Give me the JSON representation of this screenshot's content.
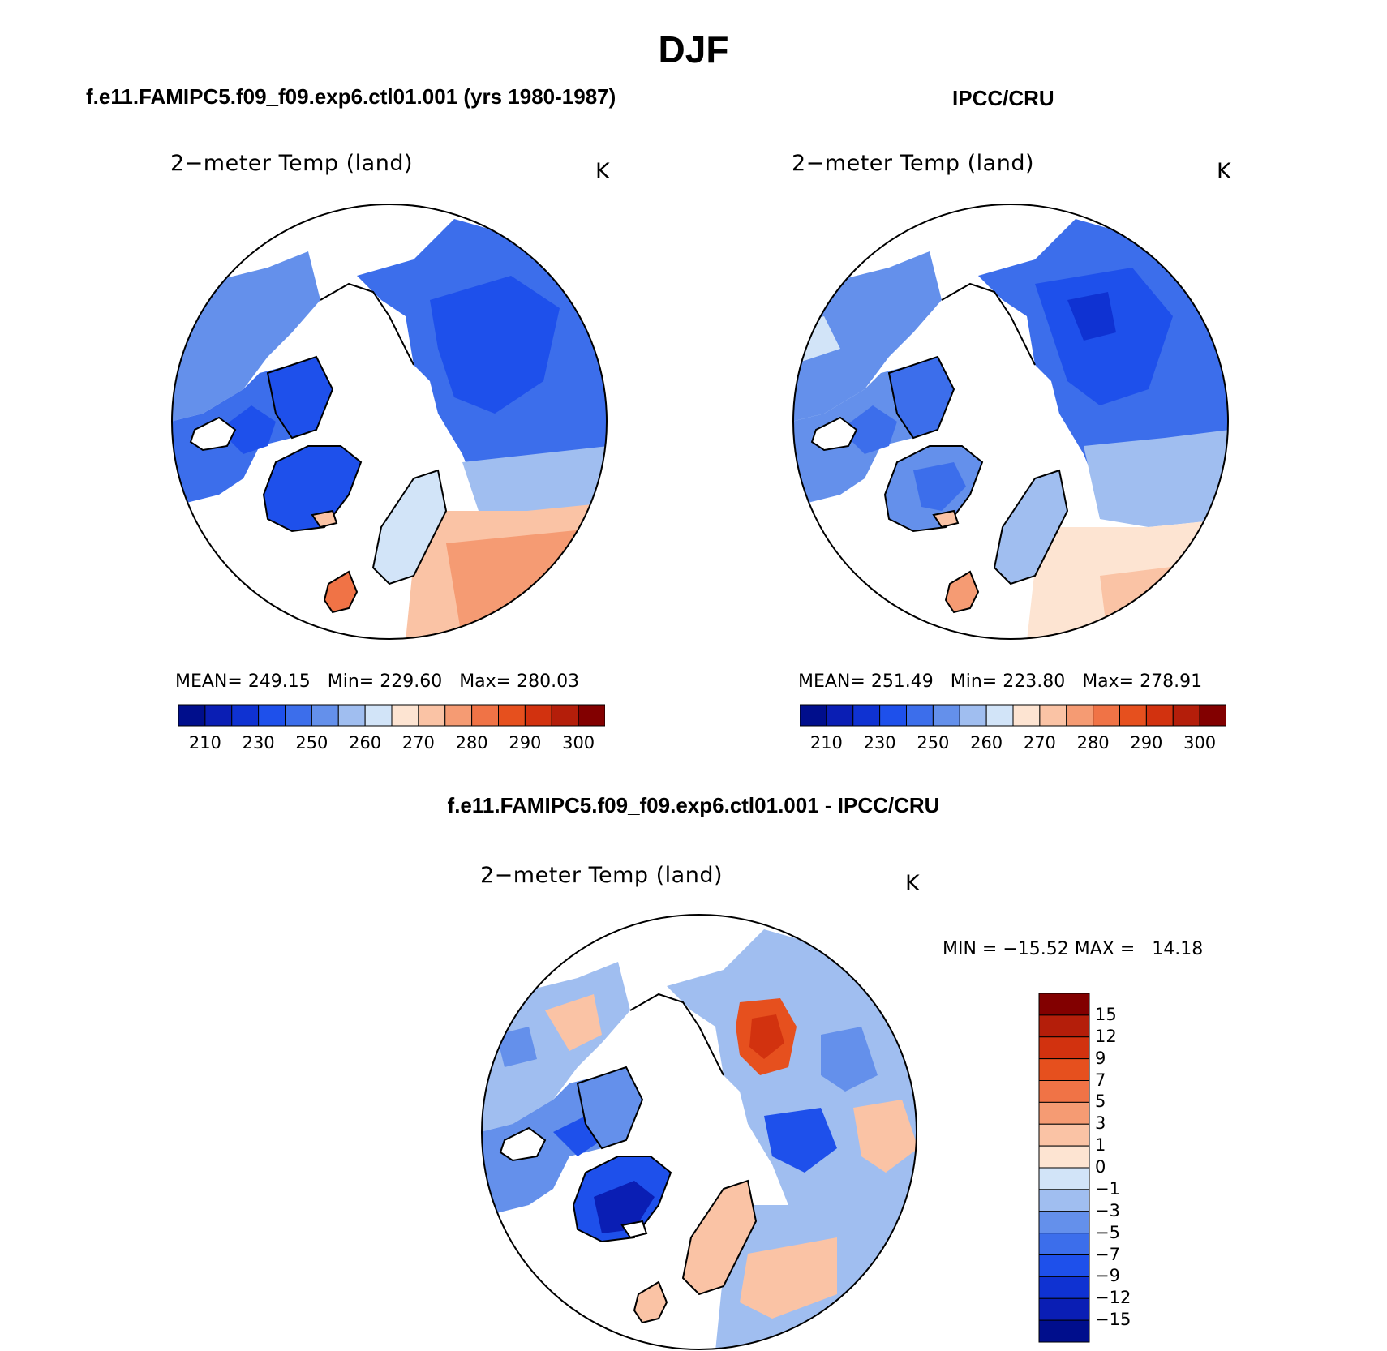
{
  "figure": {
    "season": "DJF"
  },
  "panels": {
    "model": {
      "heading": "f.e11.FAMIPC5.f09_f09.exp6.ctl01.001 (yrs 1980-1987)",
      "variable": "2−meter Temp (land)",
      "units": "K",
      "stats_text": "MEAN= 249.15   Min= 229.60   Max= 280.03"
    },
    "obs": {
      "heading": "IPCC/CRU",
      "variable": "2−meter Temp (land)",
      "units": "K",
      "stats_text": "MEAN= 251.49   Min= 223.80   Max= 278.91"
    },
    "diff": {
      "heading": "f.e11.FAMIPC5.f09_f09.exp6.ctl01.001 - IPCC/CRU",
      "variable": "2−meter Temp (land)",
      "units": "K",
      "stats_text": "MIN = −15.52 MAX =   14.18"
    }
  },
  "colorbars": {
    "temp_labels": [
      "210",
      "230",
      "250",
      "260",
      "270",
      "280",
      "290",
      "300"
    ],
    "temp_colors": [
      "#000e8c",
      "#0a1eb4",
      "#0f32d2",
      "#1e50eb",
      "#3c6eeb",
      "#6490eb",
      "#a0bef0",
      "#d2e4f8",
      "#fde4d2",
      "#fac3a5",
      "#f59b73",
      "#f07346",
      "#e6501e",
      "#d2320f",
      "#b41e0a",
      "#820000"
    ],
    "diff_labels": [
      "15",
      "12",
      "9",
      "7",
      "5",
      "3",
      "1",
      "0",
      "−1",
      "−3",
      "−5",
      "−7",
      "−9",
      "−12",
      "−15"
    ],
    "diff_colors": [
      "#820000",
      "#b41e0a",
      "#d2320f",
      "#e6501e",
      "#f07346",
      "#f59b73",
      "#fac3a5",
      "#fde4d2",
      "#d2e4f8",
      "#a0bef0",
      "#6490eb",
      "#3c6eeb",
      "#1e50eb",
      "#0f32d2",
      "#0a1eb4",
      "#000e8c"
    ]
  }
}
